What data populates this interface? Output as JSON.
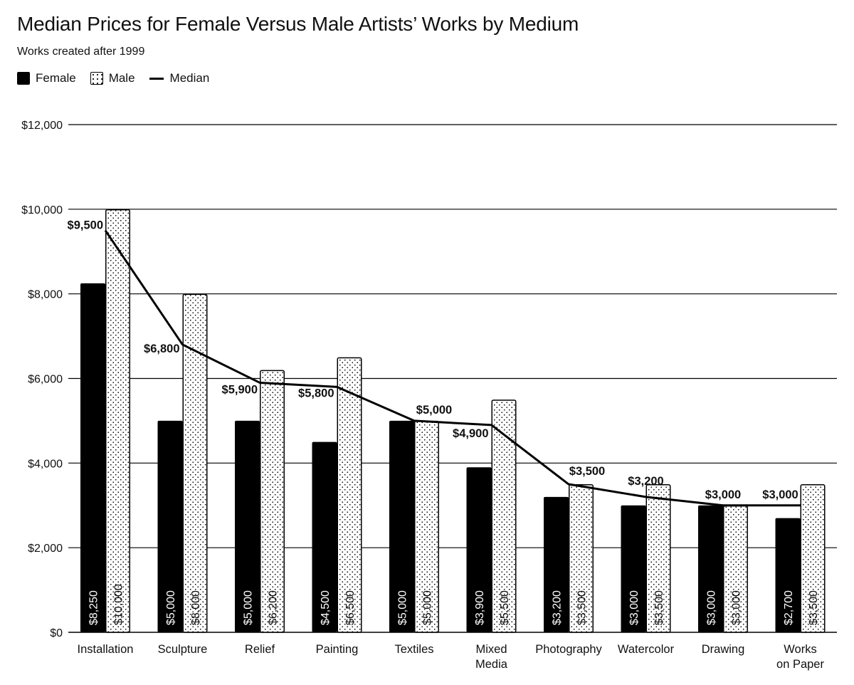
{
  "title": "Median Prices for Female Versus Male Artists’ Works by Medium",
  "subtitle": "Works created after 1999",
  "legend": {
    "female": "Female",
    "male": "Male",
    "median": "Median"
  },
  "colors": {
    "female": "#000000",
    "male_fill": "#ffffff",
    "male_dots": "#000000",
    "grid": "#000000"
  },
  "chart_data": {
    "type": "bar",
    "title": "Median Prices for Female Versus Male Artists’ Works by Medium",
    "subtitle": "Works created after 1999",
    "categories": [
      [
        "Installation"
      ],
      [
        "Sculpture"
      ],
      [
        "Relief"
      ],
      [
        "Painting"
      ],
      [
        "Textiles"
      ],
      [
        "Mixed",
        "Media"
      ],
      [
        "Photography"
      ],
      [
        "Watercolor"
      ],
      [
        "Drawing"
      ],
      [
        "Works",
        "on Paper"
      ]
    ],
    "series": [
      {
        "name": "Female",
        "values": [
          8250,
          5000,
          5000,
          4500,
          5000,
          3900,
          3200,
          3000,
          3000,
          2700
        ],
        "labels": [
          "$8,250",
          "$5,000",
          "$5,000",
          "$4,500",
          "$5,000",
          "$3,900",
          "$3,200",
          "$3,000",
          "$3,000",
          "$2,700"
        ]
      },
      {
        "name": "Male",
        "values": [
          10000,
          8000,
          6200,
          6500,
          5000,
          5500,
          3500,
          3500,
          3000,
          3500
        ],
        "labels": [
          "$10,000",
          "$8,000",
          "$6,200",
          "$6,500",
          "$5,000",
          "$5,500",
          "$3,500",
          "$3,500",
          "$3,000",
          "$3,500"
        ]
      },
      {
        "name": "Median",
        "type": "line",
        "values": [
          9500,
          6800,
          5900,
          5800,
          5000,
          4900,
          3500,
          3200,
          3000,
          3000
        ],
        "labels": [
          "$9,500",
          "$6,800",
          "$5,900",
          "$5,800",
          "$5,000",
          "$4,900",
          "$3,500",
          "$3,200",
          "$3,000",
          "$3,000"
        ]
      }
    ],
    "yticks": [
      0,
      2000,
      4000,
      6000,
      8000,
      10000,
      12000
    ],
    "ytick_labels": [
      "$0",
      "$2,000",
      "$4,000",
      "$6,000",
      "$8,000",
      "$10,000",
      "$12,000"
    ],
    "ylim": [
      0,
      12000
    ],
    "grid": "horizontal",
    "legend_position": "top-left"
  }
}
